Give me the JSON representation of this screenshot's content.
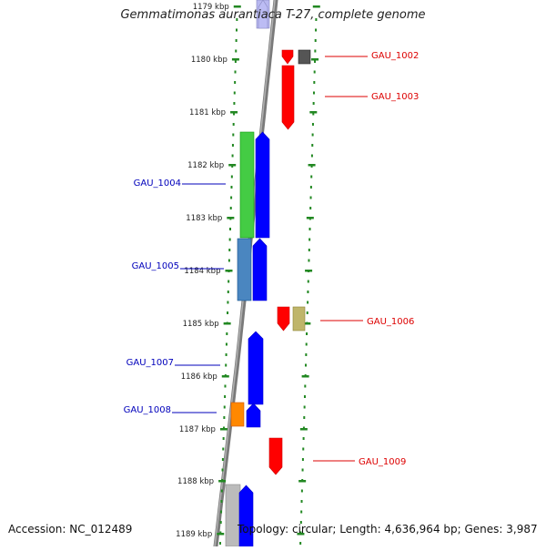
{
  "title": "Gemmatimonas aurantiaca T-27, complete genome",
  "accession": "Accession: NC_012489",
  "topology": "Topology: circular; Length: 4,636,964 bp; Genes: 3,987",
  "ticks": [
    "1179 kbp",
    "1180 kbp",
    "1181 kbp",
    "1182 kbp",
    "1183 kbp",
    "1184 kbp",
    "1185 kbp",
    "1186 kbp",
    "1187 kbp",
    "1188 kbp",
    "1189 kbp"
  ],
  "genes": [
    {
      "label": "GAU_1002",
      "strand": "+",
      "color": "#dd0000"
    },
    {
      "label": "GAU_1003",
      "strand": "+",
      "color": "#dd0000"
    },
    {
      "label": "GAU_1004",
      "strand": "-",
      "color": "#0000bb"
    },
    {
      "label": "GAU_1005",
      "strand": "-",
      "color": "#0000bb"
    },
    {
      "label": "GAU_1006",
      "strand": "+",
      "color": "#dd0000"
    },
    {
      "label": "GAU_1007",
      "strand": "-",
      "color": "#0000bb"
    },
    {
      "label": "GAU_1008",
      "strand": "-",
      "color": "#0000bb"
    },
    {
      "label": "GAU_1009",
      "strand": "+",
      "color": "#dd0000"
    }
  ],
  "colors": {
    "forward_cds": "#ff0000",
    "reverse_cds": "#0000ff",
    "backbone": "#888888",
    "tick_green": "#228822",
    "green_feature": "#44cc44",
    "steelblue_feature": "#4a86c0",
    "orange_feature": "#ff8800",
    "khaki_feature": "#bfb56a",
    "grey_feature": "#555555",
    "lightgrey_feature": "#bbbbbb",
    "lavender_feature": "#b8b8f0"
  }
}
